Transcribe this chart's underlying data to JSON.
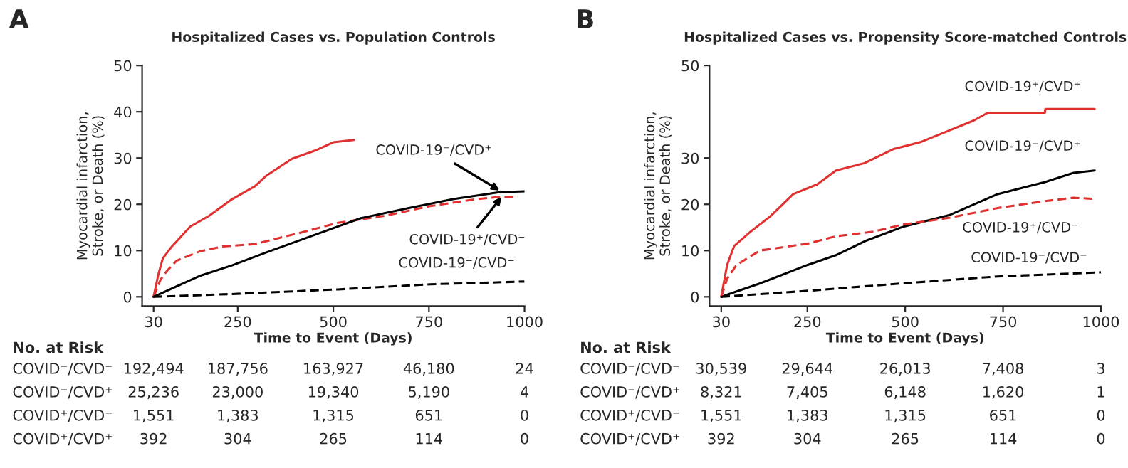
{
  "chart_data": [
    {
      "type": "line",
      "title": "Hospitalized Cases vs. Population Controls",
      "xlabel": "Time to Event (Days)",
      "ylabel": "Myocardial infarction,\nStroke, or Death (%)",
      "xlim": [
        0,
        1000
      ],
      "xticks": [
        30,
        250,
        500,
        750,
        1000
      ],
      "ylim": [
        -2,
        50
      ],
      "yticks": [
        0,
        10,
        20,
        30,
        40,
        50
      ],
      "grid": false,
      "legend": false,
      "series": [
        {
          "color": "#e03030",
          "line_style": "solid",
          "x": [
            30,
            42,
            54,
            78,
            126,
            175,
            235,
            295,
            325,
            391,
            452,
            500,
            554
          ],
          "values": [
            0,
            4.7,
            8.3,
            10.9,
            15.2,
            17.5,
            21.1,
            23.9,
            26.2,
            29.8,
            31.6,
            33.4,
            33.9
          ]
        },
        {
          "color": "#e03030",
          "line_style": "dashed",
          "x": [
            30,
            48,
            66,
            90,
            150,
            211,
            295,
            343,
            416,
            512,
            633,
            753,
            874,
            934,
            982
          ],
          "values": [
            0,
            3.7,
            5.7,
            7.8,
            9.8,
            10.9,
            11.4,
            12.4,
            13.9,
            16,
            17.5,
            19.6,
            21.1,
            21.6,
            21.6
          ]
        },
        {
          "color": "#000000",
          "line_style": "solid",
          "x": [
            30,
            150,
            235,
            331,
            452,
            572,
            693,
            813,
            934,
            1000
          ],
          "values": [
            0,
            4.5,
            6.8,
            9.8,
            13.4,
            17,
            19.1,
            21.1,
            22.6,
            22.8
          ]
        },
        {
          "color": "#000000",
          "line_style": "dashed",
          "x": [
            30,
            235,
            512,
            753,
            1000
          ],
          "values": [
            0,
            0.6,
            1.6,
            2.7,
            3.3
          ]
        }
      ],
      "annotations": [
        "A",
        "No. at Risk",
        "COVID⁻/CVD⁻",
        "192,494",
        "187,756",
        "163,927",
        "46,180",
        "24",
        "COVID⁻/CVD⁺",
        "25,236",
        "23,000",
        "19,340",
        "5,190",
        "4",
        "COVID⁺/CVD⁻",
        "1,551",
        "1,383",
        "1,315",
        "651",
        "0",
        "COVID⁺/CVD⁺",
        "392",
        "304",
        "265",
        "114",
        "0",
        {
          "text": "COVID-19⁻/CVD⁺",
          "x": 935,
          "y": 23
        },
        {
          "text": "COVID-19⁺/CVD⁻",
          "x": 940,
          "y": 21.6
        },
        {
          "text": "COVID-19⁻/CVD⁻",
          "x": 1000,
          "y": 3.3
        }
      ]
    },
    {
      "type": "line",
      "title": "Hospitalized Cases vs. Propensity Score-matched Controls",
      "xlabel": "Time to Event (Days)",
      "ylabel": "Myocardial infarction,\nStroke, or Death (%)",
      "xlim": [
        0,
        1000
      ],
      "xticks": [
        30,
        250,
        500,
        750,
        1000
      ],
      "ylim": [
        -2,
        50
      ],
      "yticks": [
        0,
        10,
        20,
        30,
        50
      ],
      "grid": false,
      "legend": false,
      "series": [
        {
          "color": "#e03030",
          "line_style": "solid",
          "x": [
            30,
            45,
            63,
            105,
            154,
            214,
            275,
            323,
            396,
            469,
            541,
            614,
            675,
            711,
            857,
            858,
            984
          ],
          "values": [
            0,
            6.9,
            11,
            14.1,
            17.3,
            22.2,
            24.3,
            27.3,
            28.9,
            31.9,
            33.5,
            36,
            38.1,
            39.8,
            39.8,
            40.6,
            40.6
          ]
        },
        {
          "color": "#000000",
          "line_style": "solid",
          "x": [
            30,
            129,
            251,
            323,
            396,
            493,
            614,
            736,
            857,
            930,
            984
          ],
          "values": [
            0,
            2.9,
            6.9,
            9,
            12,
            15.1,
            17.7,
            22.2,
            24.8,
            26.8,
            27.3
          ]
        },
        {
          "color": "#e03030",
          "line_style": "dashed",
          "x": [
            30,
            45,
            69,
            129,
            251,
            323,
            420,
            493,
            614,
            736,
            857,
            930,
            978
          ],
          "values": [
            0,
            3.9,
            6.9,
            10,
            11.5,
            13.1,
            14.1,
            15.6,
            17.1,
            19.2,
            20.7,
            21.4,
            21.2
          ]
        },
        {
          "color": "#000000",
          "line_style": "dashed",
          "x": [
            30,
            251,
            493,
            736,
            1000
          ],
          "values": [
            0,
            1.3,
            2.9,
            4.4,
            5.3
          ]
        }
      ],
      "annotations": [
        "B",
        "No. at Risk",
        "COVID⁻/CVD⁻",
        "30,539",
        "29,644",
        "26,013",
        "7,408",
        "3",
        "COVID⁻/CVD⁺",
        "8,321",
        "7,405",
        "6,148",
        "1,620",
        "1",
        "COVID⁺/CVD⁻",
        "1,551",
        "1,383",
        "1,315",
        "651",
        "0",
        "COVID⁺/CVD⁺",
        "392",
        "304",
        "265",
        "114",
        "0",
        {
          "text": "COVID-19⁺/CVD⁺",
          "x": 984,
          "y": 40.6
        },
        {
          "text": "COVID-19⁻/CVD⁺",
          "x": 984,
          "y": 27.3
        },
        {
          "text": "COVID-19⁺/CVD⁻",
          "x": 978,
          "y": 21.2
        },
        {
          "text": "COVID-19⁻/CVD⁻",
          "x": 1000,
          "y": 5.3
        }
      ]
    }
  ]
}
